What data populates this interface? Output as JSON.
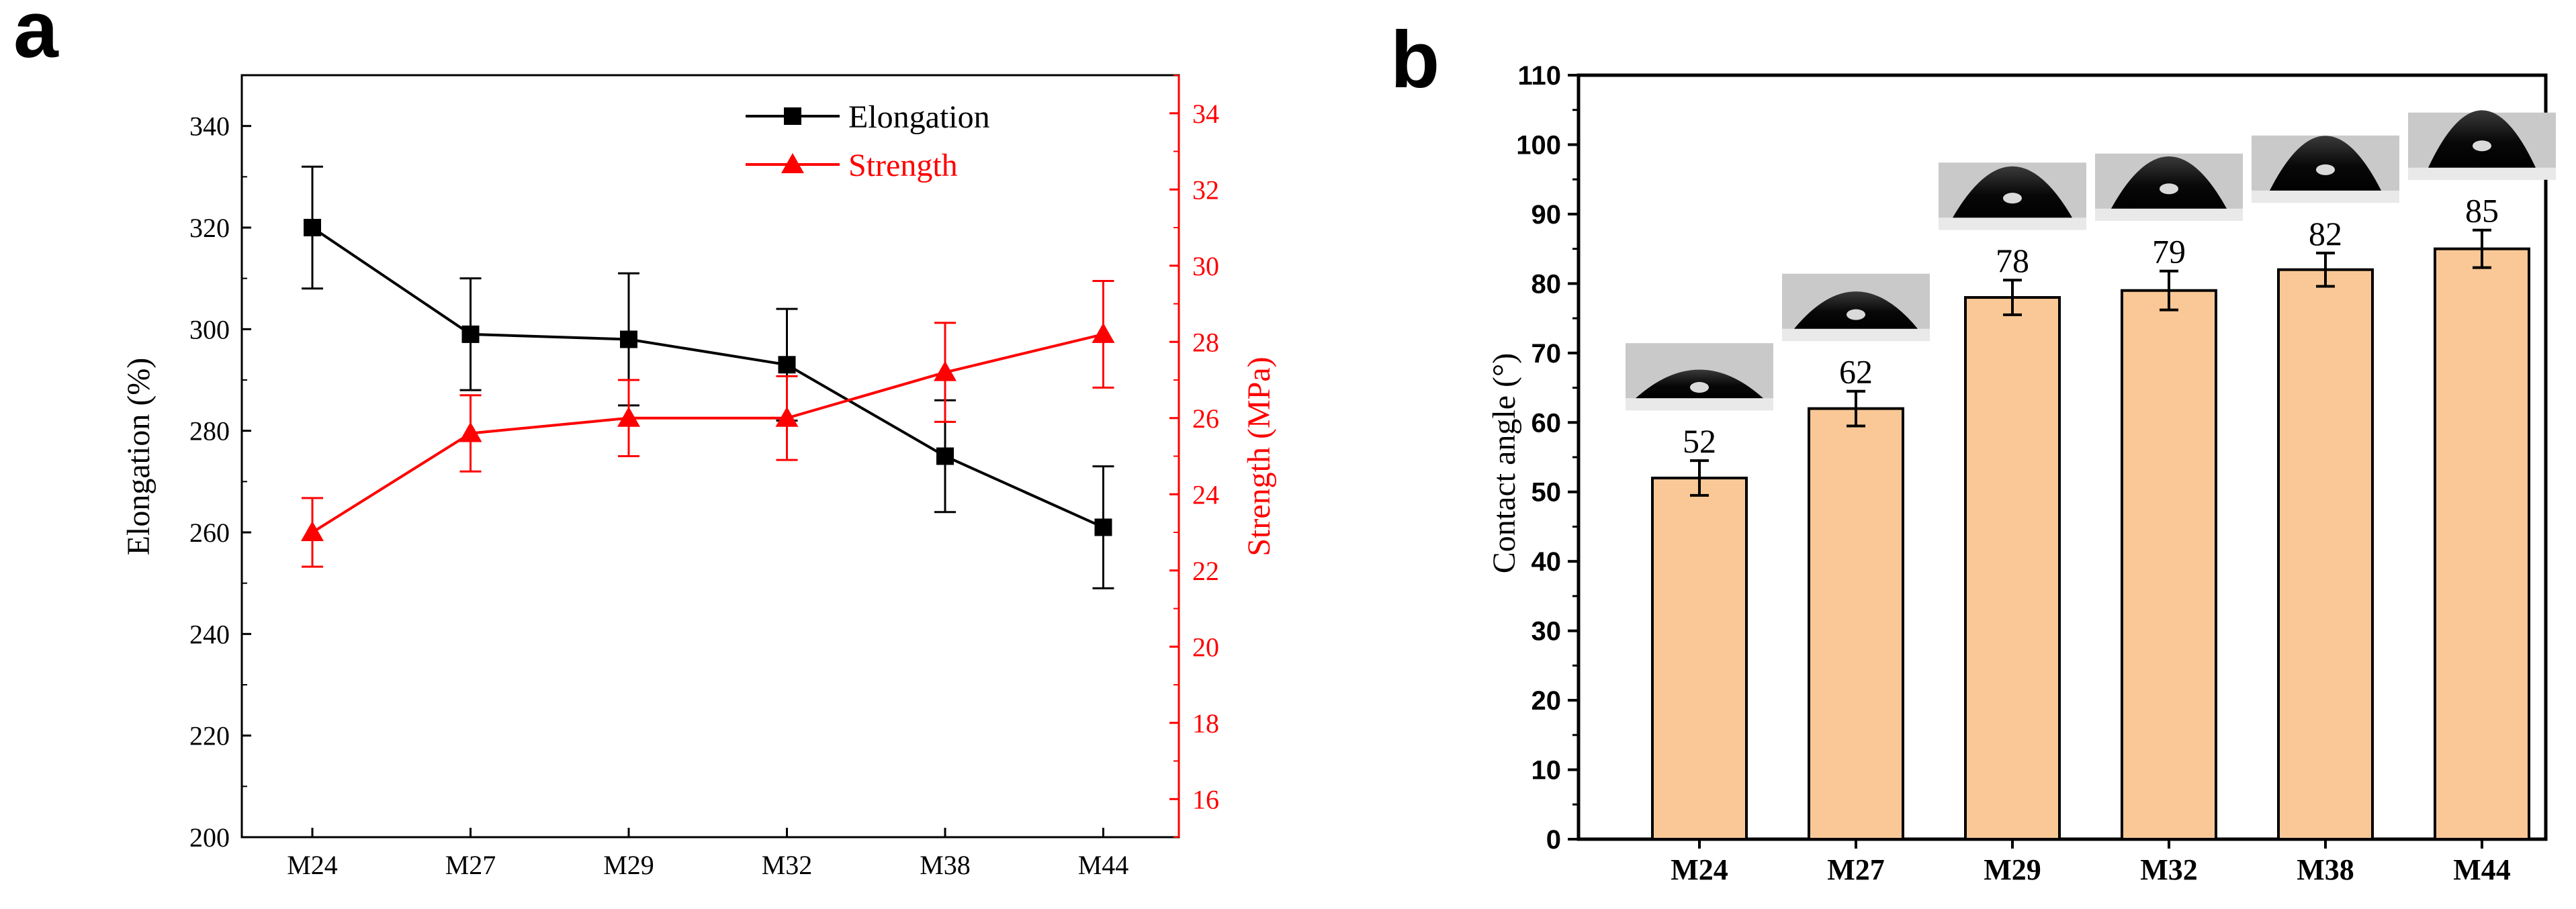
{
  "panel_labels": {
    "a": "a",
    "b": "b"
  },
  "colors": {
    "elongation": "#000000",
    "strength": "#ff0000",
    "bar_fill": "#f9c896",
    "bar_stroke": "#000000"
  },
  "chart_data": [
    {
      "id": "a",
      "type": "line",
      "title": "",
      "categories": [
        "M24",
        "M27",
        "M29",
        "M32",
        "M38",
        "M44"
      ],
      "xlabel": "",
      "ylabel": "Elongation (%)",
      "y2label": "Strength (MPa)",
      "ylim": [
        200,
        350
      ],
      "y_ticks": [
        200,
        220,
        240,
        260,
        280,
        300,
        320,
        340
      ],
      "y2lim": [
        15,
        35
      ],
      "y2_ticks": [
        16,
        18,
        20,
        22,
        24,
        26,
        28,
        30,
        32,
        34
      ],
      "legend_position": "top-right",
      "grid": false,
      "series": [
        {
          "name": "Elongation",
          "axis": "left",
          "marker": "square",
          "values": [
            320,
            299,
            298,
            293,
            275,
            261
          ],
          "errors": [
            12,
            11,
            13,
            11,
            11,
            12
          ]
        },
        {
          "name": "Strength",
          "axis": "right",
          "marker": "triangle",
          "values": [
            23,
            25.6,
            26,
            26,
            27.2,
            28.2
          ],
          "errors": [
            0.9,
            1.0,
            1.0,
            1.1,
            1.3,
            1.4
          ]
        }
      ]
    },
    {
      "id": "b",
      "type": "bar",
      "title": "",
      "categories": [
        "M24",
        "M27",
        "M29",
        "M32",
        "M38",
        "M44"
      ],
      "values": [
        52,
        62,
        78,
        79,
        82,
        85
      ],
      "errors": [
        2.5,
        2.5,
        2.5,
        2.8,
        2.4,
        2.7
      ],
      "data_labels": [
        "52",
        "62",
        "78",
        "79",
        "82",
        "85"
      ],
      "xlabel": "",
      "ylabel": "Contact angle (°)",
      "ylim": [
        0,
        110
      ],
      "y_ticks": [
        0,
        10,
        20,
        30,
        40,
        50,
        60,
        70,
        80,
        90,
        100,
        110
      ],
      "grid": false
    }
  ]
}
